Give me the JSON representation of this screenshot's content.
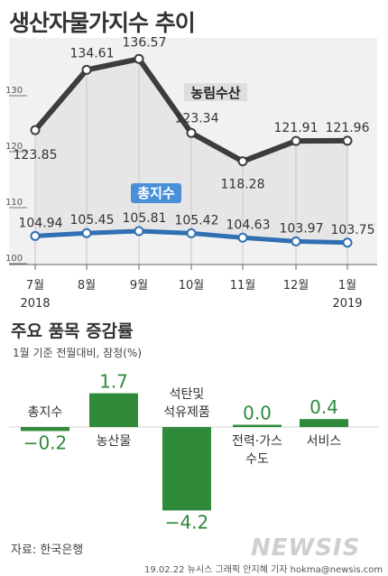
{
  "title": "생산자물가지수 추이",
  "chart_data": [
    {
      "type": "line",
      "categories": [
        "7월",
        "8월",
        "9월",
        "10월",
        "11월",
        "12월",
        "1월"
      ],
      "year_labels": [
        "2018",
        "",
        "",
        "",
        "",
        "",
        "2019"
      ],
      "y_ticks": [
        100,
        110,
        120,
        130
      ],
      "ylim": [
        100,
        140
      ],
      "series": [
        {
          "name": "농림수산",
          "values": [
            123.85,
            134.61,
            136.57,
            123.34,
            118.28,
            121.91,
            121.96
          ],
          "value_labels": [
            "123.85",
            "134.61",
            "136.57",
            "123.34",
            "118.28",
            "121.91",
            "121.96"
          ],
          "color": "#3d3d3d"
        },
        {
          "name": "총지수",
          "values": [
            104.94,
            105.45,
            105.81,
            105.42,
            104.63,
            103.97,
            103.75
          ],
          "value_labels": [
            "104.94",
            "105.45",
            "105.81",
            "105.42",
            "104.63",
            "103.97",
            "103.75"
          ],
          "color": "#2f6fb2"
        }
      ]
    },
    {
      "type": "bar",
      "title": "주요 품목 증감률",
      "subtitle": "1월 기준 전월대비, 잠정(%)",
      "categories": [
        "총지수",
        "농산물",
        "석탄및\n석유제품",
        "전력·가스\n수도",
        "서비스"
      ],
      "values": [
        -0.2,
        1.7,
        -4.2,
        0.0,
        0.4
      ],
      "value_labels": [
        "−0.2",
        "1.7",
        "−4.2",
        "0.0",
        "0.4"
      ],
      "color": "#2f8a3a"
    }
  ],
  "source": "자료: 한국은행",
  "credit": "19.02.22 뉴시스 그래픽 안지혜 기자 hokma@newsis.com",
  "watermark": "NEWSIS"
}
